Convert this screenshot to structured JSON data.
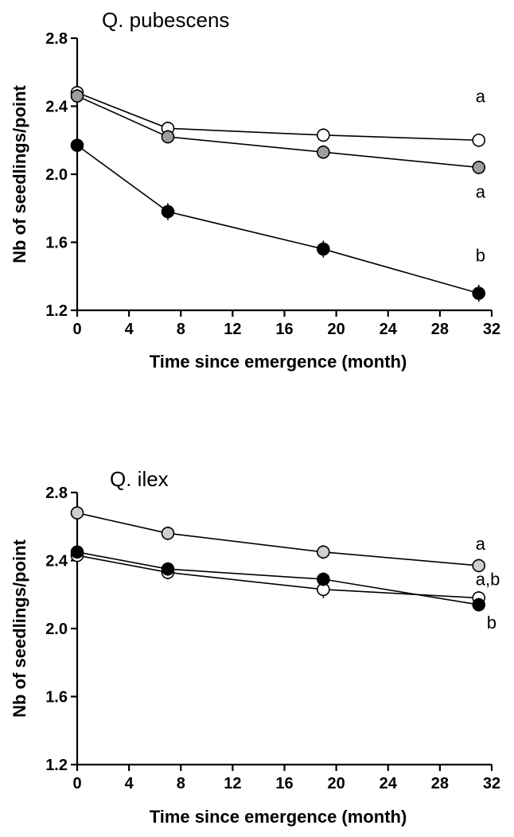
{
  "chart_data": [
    {
      "type": "line",
      "title": "Q. pubescens",
      "xlabel": "Time since emergence (month)",
      "ylabel": "Nb of seedlings/point",
      "xlim": [
        0,
        32
      ],
      "ylim": [
        1.2,
        2.8
      ],
      "xticks": [
        "0",
        "4",
        "8",
        "12",
        "16",
        "20",
        "24",
        "28",
        "32"
      ],
      "yticks": [
        "1.2",
        "1.6",
        "2.0",
        "2.4",
        "2.8"
      ],
      "grid": false,
      "x": [
        0,
        7,
        19,
        31
      ],
      "series": [
        {
          "marker_color": "#ffffff",
          "values": [
            2.48,
            2.27,
            2.23,
            2.2
          ],
          "errors": [
            0.04,
            0.04,
            0.04,
            0.04
          ],
          "end_label": "a"
        },
        {
          "marker_color": "#9e9e9e",
          "values": [
            2.46,
            2.22,
            2.13,
            2.04
          ],
          "errors": [
            0.04,
            0.04,
            0.04,
            0.04
          ],
          "end_label": "a"
        },
        {
          "marker_color": "#000000",
          "values": [
            2.17,
            1.78,
            1.56,
            1.3
          ],
          "errors": [
            0.04,
            0.05,
            0.05,
            0.05
          ],
          "end_label": "b"
        }
      ]
    },
    {
      "type": "line",
      "title": "Q. ilex",
      "xlabel": "Time since emergence (month)",
      "ylabel": "Nb of seedlings/point",
      "xlim": [
        0,
        32
      ],
      "ylim": [
        1.2,
        2.8
      ],
      "xticks": [
        "0",
        "4",
        "8",
        "12",
        "16",
        "20",
        "24",
        "28",
        "32"
      ],
      "yticks": [
        "1.2",
        "1.6",
        "2.0",
        "2.4",
        "2.8"
      ],
      "grid": false,
      "x": [
        0,
        7,
        19,
        31
      ],
      "series": [
        {
          "marker_color": "#cfcfcf",
          "values": [
            2.68,
            2.56,
            2.45,
            2.37
          ],
          "errors": [
            0.03,
            0.04,
            0.04,
            0.04
          ],
          "end_label": "a"
        },
        {
          "marker_color": "#ffffff",
          "values": [
            2.43,
            2.33,
            2.23,
            2.18
          ],
          "errors": [
            0.03,
            0.04,
            0.05,
            0.04
          ],
          "end_label": "a,b"
        },
        {
          "marker_color": "#000000",
          "values": [
            2.45,
            2.35,
            2.29,
            2.14
          ],
          "errors": [
            0.03,
            0.04,
            0.04,
            0.04
          ],
          "end_label": "b"
        }
      ]
    }
  ]
}
